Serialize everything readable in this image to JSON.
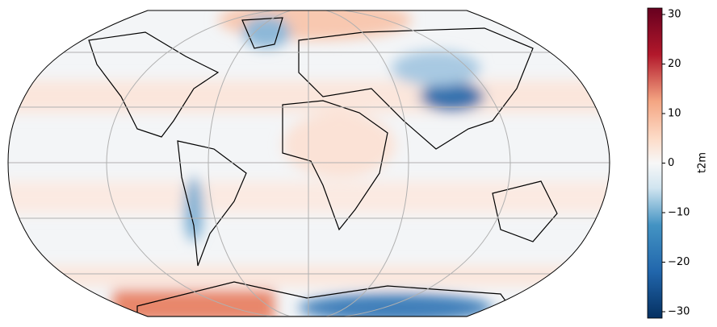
{
  "colorbar": {
    "label": "t2m",
    "lim": [
      -31.3,
      31.3
    ],
    "ticks": [
      {
        "value": -30,
        "label": "−30"
      },
      {
        "value": -20,
        "label": "−20"
      },
      {
        "value": -10,
        "label": "−10"
      },
      0,
      10,
      20,
      30
    ]
  }
}
